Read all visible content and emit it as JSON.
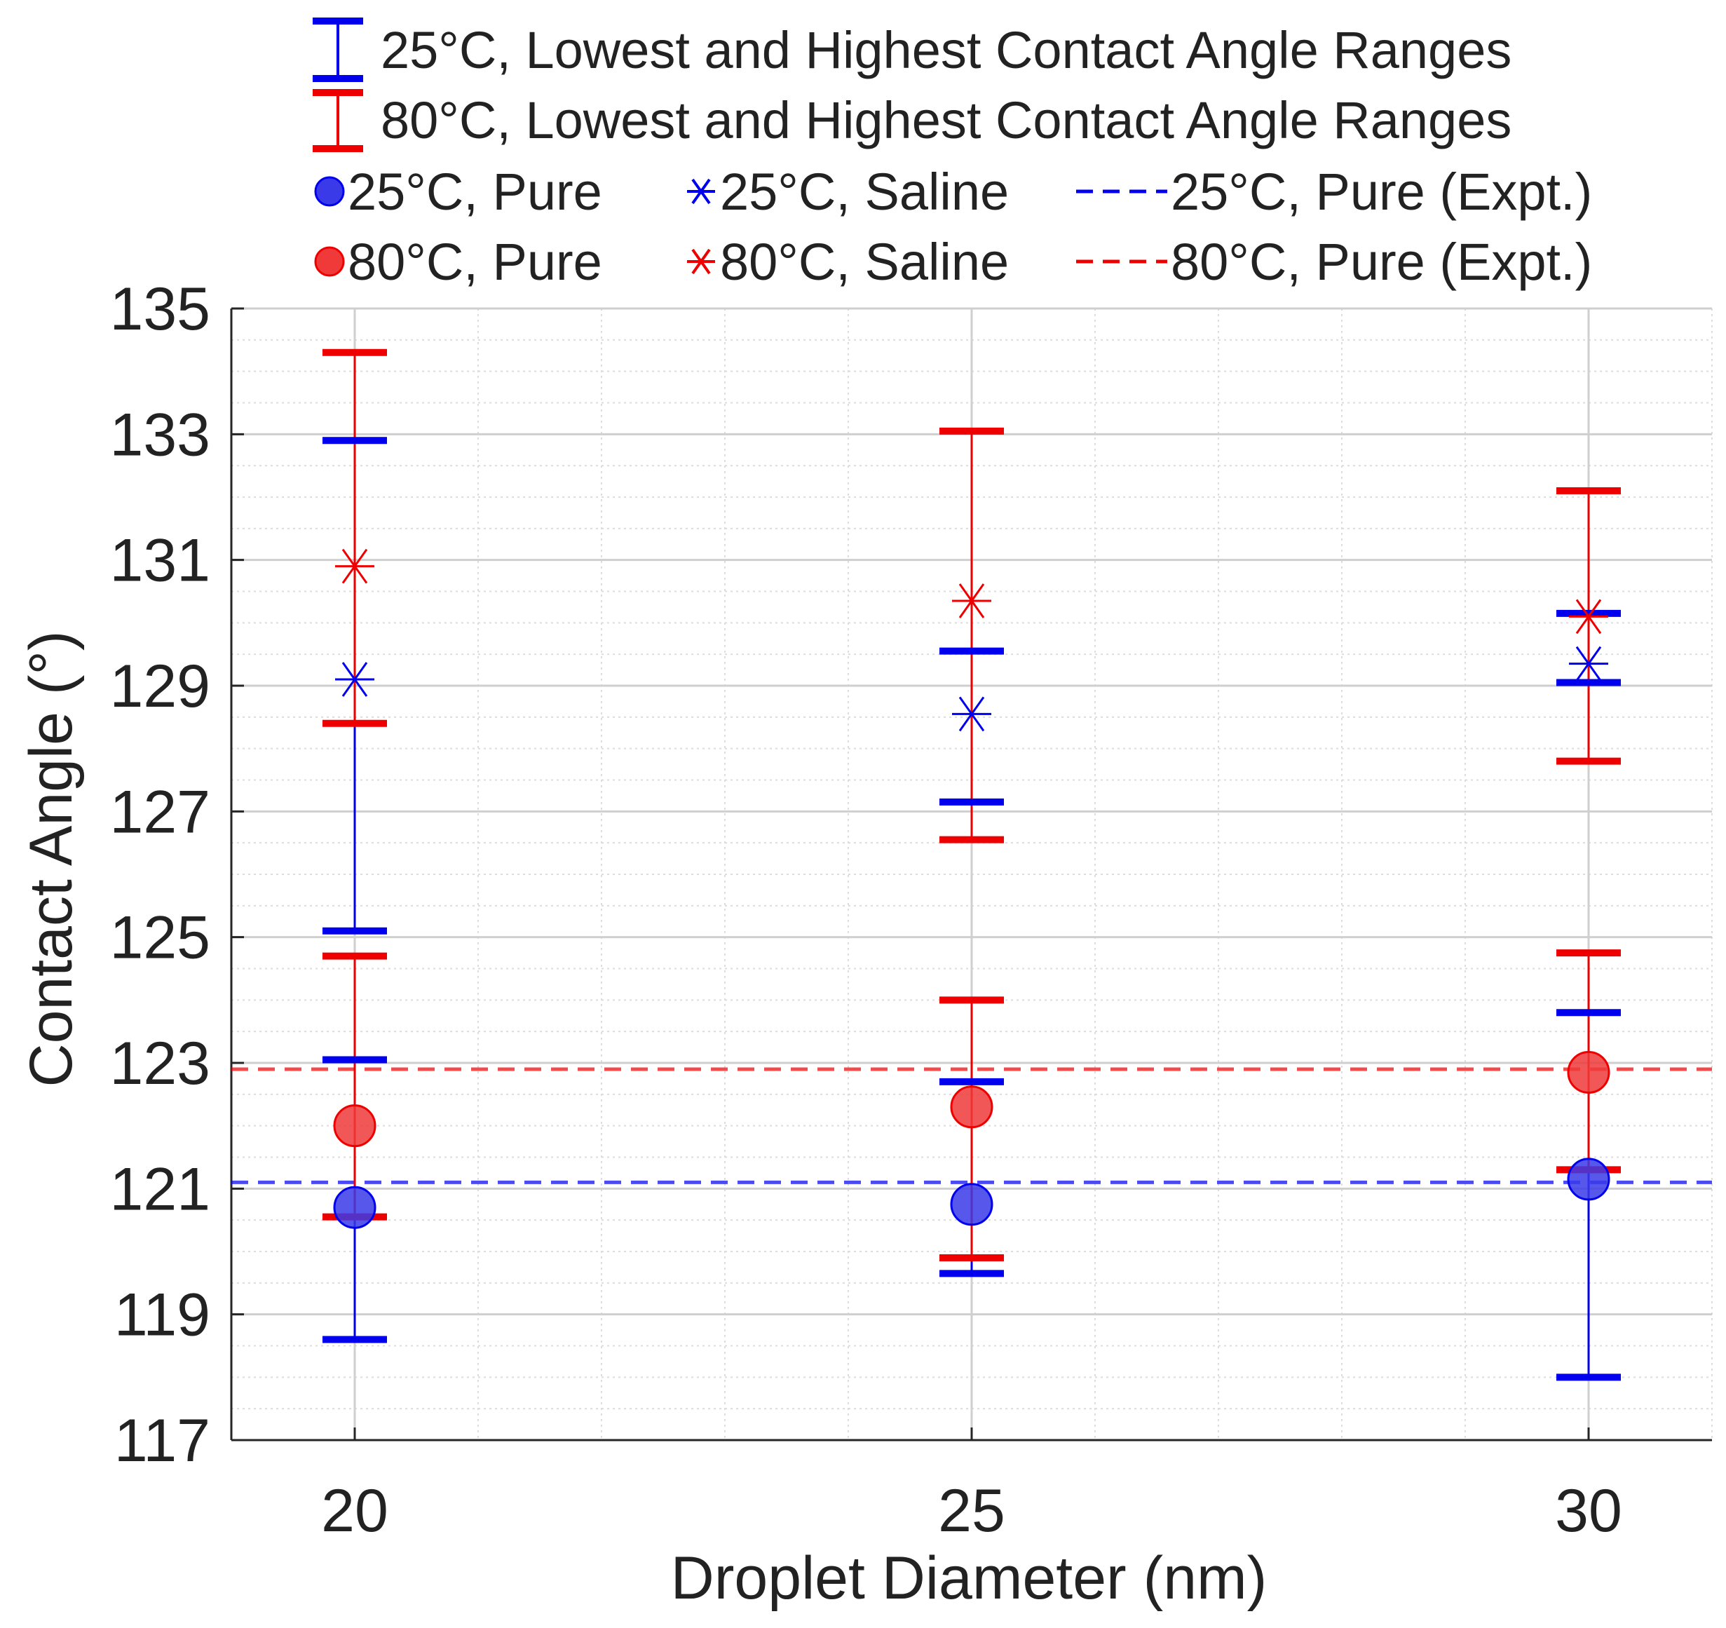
{
  "chart_data": {
    "type": "scatter",
    "title": "",
    "xlabel": "Droplet Diameter (nm)",
    "ylabel": "Contact Angle (°)",
    "x_ticks": [
      "20",
      "25",
      "30"
    ],
    "x_values": [
      20,
      25,
      30
    ],
    "xlim": [
      19,
      31
    ],
    "y_ticks": [
      "117",
      "119",
      "121",
      "123",
      "125",
      "127",
      "129",
      "131",
      "133",
      "135"
    ],
    "ylim": [
      117,
      135
    ],
    "grid": true,
    "minor_grid": true,
    "colors": {
      "blue": "#0000ee",
      "red": "#ee0000",
      "blue_fill": "#3a3ae8",
      "red_fill": "#f03a3a"
    },
    "legend": {
      "range_25": "25°C, Lowest and Highest Contact Angle Ranges",
      "range_80": "80°C, Lowest and Highest Contact Angle Ranges",
      "pure_25": "25°C, Pure",
      "saline_25": "25°C, Saline",
      "expt_25": "25°C, Pure (Expt.)",
      "pure_80": "80°C, Pure",
      "saline_80": "80°C, Saline",
      "expt_80": "80°C, Pure (Expt.)"
    },
    "series": [
      {
        "name": "25°C, Pure",
        "marker": "circle",
        "color": "blue",
        "values": [
          120.7,
          120.75,
          121.15
        ]
      },
      {
        "name": "80°C, Pure",
        "marker": "circle",
        "color": "red",
        "values": [
          122.0,
          122.3,
          122.85
        ]
      },
      {
        "name": "25°C, Saline",
        "marker": "asterisk",
        "color": "blue",
        "values": [
          129.1,
          128.55,
          129.35
        ]
      },
      {
        "name": "80°C, Saline",
        "marker": "asterisk",
        "color": "red",
        "values": [
          130.9,
          130.35,
          130.1
        ]
      },
      {
        "name": "25°C, Pure (Expt.)",
        "marker": "dashed-line",
        "color": "blue",
        "value": 121.1
      },
      {
        "name": "80°C, Pure (Expt.)",
        "marker": "dashed-line",
        "color": "red",
        "value": 122.9
      }
    ],
    "ranges": [
      {
        "name": "25°C Pure range",
        "color": "blue",
        "x": [
          20,
          25,
          30
        ],
        "low": [
          118.6,
          119.65,
          118.0
        ],
        "high": [
          123.05,
          122.7,
          123.8
        ]
      },
      {
        "name": "25°C Saline range",
        "color": "blue",
        "x": [
          20,
          25,
          30
        ],
        "low": [
          125.1,
          127.15,
          129.05
        ],
        "high": [
          132.9,
          129.55,
          130.15
        ]
      },
      {
        "name": "80°C Pure range",
        "color": "red",
        "x": [
          20,
          25,
          30
        ],
        "low": [
          120.55,
          119.9,
          121.3
        ],
        "high": [
          124.7,
          124.0,
          124.75
        ]
      },
      {
        "name": "80°C Saline range",
        "color": "red",
        "x": [
          20,
          25,
          30
        ],
        "low": [
          128.4,
          126.55,
          127.8
        ],
        "high": [
          134.3,
          133.05,
          132.1
        ]
      }
    ]
  }
}
